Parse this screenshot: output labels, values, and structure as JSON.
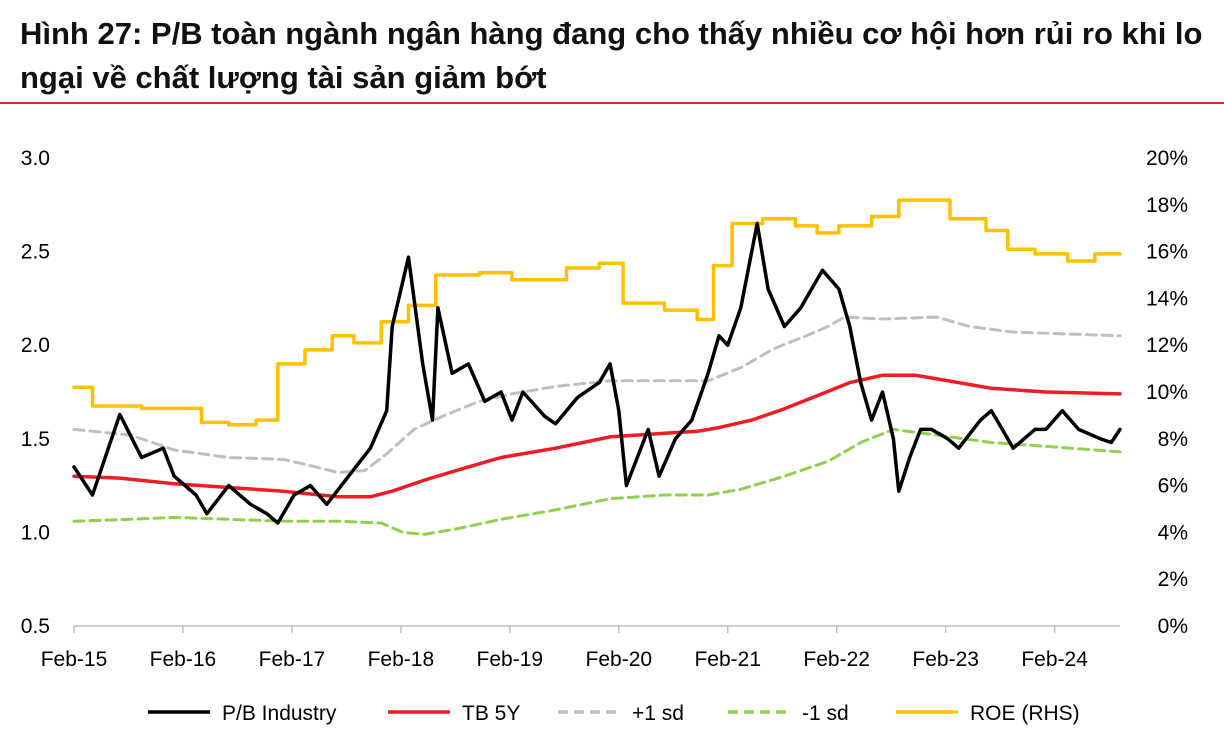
{
  "title": "Hình 27: P/B toàn ngành ngân hàng đang cho thấy nhiều cơ hội hơn rủi ro khi lo ngại về chất lượng tài sản giảm bớt",
  "chart_data": {
    "type": "line",
    "x_ticks": [
      "Feb-15",
      "Feb-16",
      "Feb-17",
      "Feb-18",
      "Feb-19",
      "Feb-20",
      "Feb-21",
      "Feb-22",
      "Feb-23",
      "Feb-24"
    ],
    "x_range": [
      2015.08,
      2024.68
    ],
    "y_left": {
      "range": [
        0.5,
        3.0
      ],
      "ticks": [
        "0.5",
        "1.0",
        "1.5",
        "2.0",
        "2.5",
        "3.0"
      ]
    },
    "y_right": {
      "range": [
        0,
        20
      ],
      "ticks": [
        "0%",
        "2%",
        "4%",
        "6%",
        "8%",
        "10%",
        "12%",
        "14%",
        "16%",
        "18%",
        "20%"
      ]
    },
    "grid": false,
    "legend_position": "bottom",
    "colors": {
      "pb": "#000000",
      "tb5y": "#ee1c25",
      "plus_sd": "#bfbfbf",
      "minus_sd": "#8fd14f",
      "roe": "#ffc000"
    },
    "series": [
      {
        "name": "P/B Industry",
        "axis": "left",
        "style": "solid",
        "points": [
          [
            2015.08,
            1.35
          ],
          [
            2015.25,
            1.2
          ],
          [
            2015.5,
            1.63
          ],
          [
            2015.7,
            1.4
          ],
          [
            2015.9,
            1.45
          ],
          [
            2016.0,
            1.3
          ],
          [
            2016.2,
            1.2
          ],
          [
            2016.3,
            1.1
          ],
          [
            2016.5,
            1.25
          ],
          [
            2016.7,
            1.15
          ],
          [
            2016.85,
            1.1
          ],
          [
            2016.95,
            1.05
          ],
          [
            2017.1,
            1.2
          ],
          [
            2017.25,
            1.25
          ],
          [
            2017.4,
            1.15
          ],
          [
            2017.6,
            1.3
          ],
          [
            2017.8,
            1.45
          ],
          [
            2017.95,
            1.65
          ],
          [
            2018.0,
            2.1
          ],
          [
            2018.15,
            2.47
          ],
          [
            2018.28,
            1.9
          ],
          [
            2018.37,
            1.6
          ],
          [
            2018.42,
            2.2
          ],
          [
            2018.55,
            1.85
          ],
          [
            2018.7,
            1.9
          ],
          [
            2018.85,
            1.7
          ],
          [
            2019.0,
            1.75
          ],
          [
            2019.1,
            1.6
          ],
          [
            2019.2,
            1.75
          ],
          [
            2019.4,
            1.62
          ],
          [
            2019.5,
            1.58
          ],
          [
            2019.7,
            1.72
          ],
          [
            2019.9,
            1.8
          ],
          [
            2020.0,
            1.9
          ],
          [
            2020.08,
            1.65
          ],
          [
            2020.15,
            1.25
          ],
          [
            2020.25,
            1.4
          ],
          [
            2020.35,
            1.55
          ],
          [
            2020.45,
            1.3
          ],
          [
            2020.6,
            1.5
          ],
          [
            2020.75,
            1.6
          ],
          [
            2020.9,
            1.85
          ],
          [
            2021.0,
            2.05
          ],
          [
            2021.08,
            2.0
          ],
          [
            2021.2,
            2.2
          ],
          [
            2021.35,
            2.65
          ],
          [
            2021.45,
            2.3
          ],
          [
            2021.6,
            2.1
          ],
          [
            2021.75,
            2.2
          ],
          [
            2021.85,
            2.3
          ],
          [
            2021.95,
            2.4
          ],
          [
            2022.1,
            2.3
          ],
          [
            2022.2,
            2.1
          ],
          [
            2022.3,
            1.8
          ],
          [
            2022.4,
            1.6
          ],
          [
            2022.5,
            1.75
          ],
          [
            2022.6,
            1.5
          ],
          [
            2022.65,
            1.22
          ],
          [
            2022.75,
            1.4
          ],
          [
            2022.85,
            1.55
          ],
          [
            2022.95,
            1.55
          ],
          [
            2023.1,
            1.5
          ],
          [
            2023.2,
            1.45
          ],
          [
            2023.4,
            1.6
          ],
          [
            2023.5,
            1.65
          ],
          [
            2023.6,
            1.55
          ],
          [
            2023.7,
            1.45
          ],
          [
            2023.8,
            1.5
          ],
          [
            2023.9,
            1.55
          ],
          [
            2024.0,
            1.55
          ],
          [
            2024.15,
            1.65
          ],
          [
            2024.3,
            1.55
          ],
          [
            2024.5,
            1.5
          ],
          [
            2024.6,
            1.48
          ],
          [
            2024.68,
            1.55
          ]
        ]
      },
      {
        "name": "TB 5Y",
        "axis": "left",
        "style": "solid",
        "points": [
          [
            2015.08,
            1.3
          ],
          [
            2015.5,
            1.29
          ],
          [
            2016.0,
            1.26
          ],
          [
            2016.5,
            1.24
          ],
          [
            2017.0,
            1.22
          ],
          [
            2017.5,
            1.19
          ],
          [
            2017.8,
            1.19
          ],
          [
            2018.0,
            1.22
          ],
          [
            2018.3,
            1.28
          ],
          [
            2018.7,
            1.35
          ],
          [
            2019.0,
            1.4
          ],
          [
            2019.5,
            1.45
          ],
          [
            2020.0,
            1.51
          ],
          [
            2020.5,
            1.53
          ],
          [
            2020.8,
            1.54
          ],
          [
            2021.0,
            1.56
          ],
          [
            2021.3,
            1.6
          ],
          [
            2021.6,
            1.66
          ],
          [
            2021.9,
            1.73
          ],
          [
            2022.2,
            1.8
          ],
          [
            2022.5,
            1.84
          ],
          [
            2022.8,
            1.84
          ],
          [
            2023.0,
            1.82
          ],
          [
            2023.5,
            1.77
          ],
          [
            2024.0,
            1.75
          ],
          [
            2024.68,
            1.74
          ]
        ]
      },
      {
        "name": "+1 sd",
        "axis": "left",
        "style": "dashed",
        "points": [
          [
            2015.08,
            1.55
          ],
          [
            2015.6,
            1.52
          ],
          [
            2016.0,
            1.44
          ],
          [
            2016.5,
            1.4
          ],
          [
            2017.0,
            1.39
          ],
          [
            2017.3,
            1.35
          ],
          [
            2017.5,
            1.32
          ],
          [
            2017.75,
            1.33
          ],
          [
            2017.95,
            1.42
          ],
          [
            2018.2,
            1.55
          ],
          [
            2018.5,
            1.63
          ],
          [
            2018.8,
            1.7
          ],
          [
            2019.1,
            1.74
          ],
          [
            2019.5,
            1.78
          ],
          [
            2020.0,
            1.81
          ],
          [
            2020.5,
            1.81
          ],
          [
            2020.9,
            1.81
          ],
          [
            2021.2,
            1.88
          ],
          [
            2021.5,
            1.98
          ],
          [
            2021.8,
            2.05
          ],
          [
            2022.0,
            2.1
          ],
          [
            2022.15,
            2.15
          ],
          [
            2022.5,
            2.14
          ],
          [
            2023.0,
            2.15
          ],
          [
            2023.3,
            2.1
          ],
          [
            2023.7,
            2.07
          ],
          [
            2024.68,
            2.05
          ]
        ]
      },
      {
        "name": "-1 sd",
        "axis": "left",
        "style": "dashed",
        "points": [
          [
            2015.08,
            1.06
          ],
          [
            2015.6,
            1.07
          ],
          [
            2016.0,
            1.08
          ],
          [
            2016.5,
            1.07
          ],
          [
            2017.0,
            1.06
          ],
          [
            2017.5,
            1.06
          ],
          [
            2017.9,
            1.05
          ],
          [
            2018.1,
            1.0
          ],
          [
            2018.3,
            0.99
          ],
          [
            2018.6,
            1.02
          ],
          [
            2019.0,
            1.07
          ],
          [
            2019.5,
            1.12
          ],
          [
            2020.0,
            1.18
          ],
          [
            2020.5,
            1.2
          ],
          [
            2020.9,
            1.2
          ],
          [
            2021.2,
            1.23
          ],
          [
            2021.6,
            1.3
          ],
          [
            2022.0,
            1.38
          ],
          [
            2022.3,
            1.48
          ],
          [
            2022.6,
            1.55
          ],
          [
            2023.0,
            1.52
          ],
          [
            2023.5,
            1.48
          ],
          [
            2024.0,
            1.46
          ],
          [
            2024.68,
            1.43
          ]
        ]
      },
      {
        "name": "ROE (RHS)",
        "axis": "right",
        "style": "step",
        "points": [
          [
            2015.08,
            10.2
          ],
          [
            2015.25,
            9.4
          ],
          [
            2015.7,
            9.3
          ],
          [
            2016.25,
            8.7
          ],
          [
            2016.5,
            8.6
          ],
          [
            2016.75,
            8.8
          ],
          [
            2016.95,
            11.2
          ],
          [
            2017.2,
            11.8
          ],
          [
            2017.45,
            12.4
          ],
          [
            2017.65,
            12.1
          ],
          [
            2017.9,
            13.0
          ],
          [
            2018.15,
            13.7
          ],
          [
            2018.4,
            15.0
          ],
          [
            2018.8,
            15.1
          ],
          [
            2019.1,
            14.8
          ],
          [
            2019.6,
            15.3
          ],
          [
            2019.9,
            15.5
          ],
          [
            2020.12,
            13.8
          ],
          [
            2020.5,
            13.5
          ],
          [
            2020.8,
            13.1
          ],
          [
            2020.95,
            15.4
          ],
          [
            2021.12,
            17.2
          ],
          [
            2021.4,
            17.4
          ],
          [
            2021.7,
            17.1
          ],
          [
            2021.9,
            16.8
          ],
          [
            2022.1,
            17.1
          ],
          [
            2022.4,
            17.5
          ],
          [
            2022.65,
            18.2
          ],
          [
            2023.12,
            17.4
          ],
          [
            2023.45,
            16.9
          ],
          [
            2023.65,
            16.1
          ],
          [
            2023.9,
            15.9
          ],
          [
            2024.2,
            15.6
          ],
          [
            2024.45,
            15.9
          ],
          [
            2024.68,
            15.9
          ]
        ]
      }
    ]
  }
}
